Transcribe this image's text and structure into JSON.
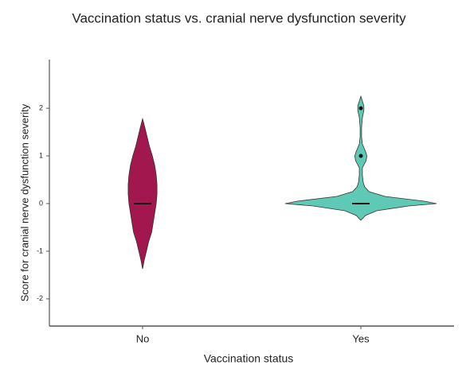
{
  "chart_data": {
    "type": "violin",
    "title": "Vaccination status vs. cranial nerve dysfunction severity",
    "xlabel": "Vaccination status",
    "ylabel": "Score for cranial nerve dysfunction severity",
    "ylim": [
      -2.57,
      3.02
    ],
    "yticks": [
      -2,
      -1,
      0,
      1,
      2
    ],
    "violins": [
      {
        "name": "No",
        "color": "#a3174f",
        "median": 0,
        "y": [
          -1.37,
          -1.2,
          -1.0,
          -0.8,
          -0.6,
          -0.4,
          -0.2,
          0,
          0.2,
          0.4,
          0.6,
          0.8,
          1.0,
          1.2,
          1.4,
          1.6,
          1.78
        ],
        "density": [
          0,
          0.02,
          0.05,
          0.08,
          0.12,
          0.14,
          0.16,
          0.18,
          0.19,
          0.19,
          0.18,
          0.16,
          0.13,
          0.09,
          0.06,
          0.03,
          0
        ]
      },
      {
        "name": "Yes",
        "color": "#5ec9b4",
        "median": 0,
        "points": [
          1,
          2
        ],
        "y": [
          -0.35,
          -0.25,
          -0.15,
          -0.05,
          0,
          0.05,
          0.15,
          0.25,
          0.35,
          0.45,
          0.6,
          0.75,
          0.9,
          1.0,
          1.1,
          1.25,
          1.4,
          1.6,
          1.8,
          1.95,
          2.05,
          2.15,
          2.25
        ],
        "density": [
          0,
          0.06,
          0.21,
          0.63,
          1,
          0.84,
          0.32,
          0.11,
          0.05,
          0.03,
          0.02,
          0.02,
          0.07,
          0.08,
          0.06,
          0.02,
          0.01,
          0.01,
          0.02,
          0.04,
          0.04,
          0.02,
          0
        ]
      }
    ]
  }
}
